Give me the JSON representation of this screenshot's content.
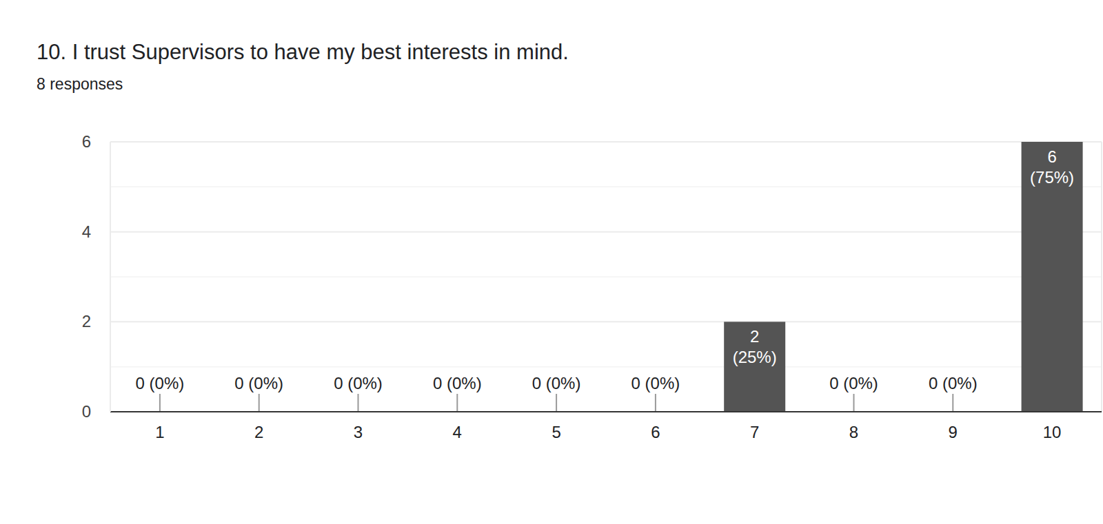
{
  "chart_data": {
    "type": "bar",
    "title": "10. I trust Supervisors to have my best interests in mind.",
    "subtitle": "8 responses",
    "categories": [
      "1",
      "2",
      "3",
      "4",
      "5",
      "6",
      "7",
      "8",
      "9",
      "10"
    ],
    "values": [
      0,
      0,
      0,
      0,
      0,
      0,
      2,
      0,
      0,
      6
    ],
    "value_labels": [
      "0 (0%)",
      "0 (0%)",
      "0 (0%)",
      "0 (0%)",
      "0 (0%)",
      "0 (0%)",
      "2 (25%)",
      "0 (0%)",
      "0 (0%)",
      "6 (75%)"
    ],
    "data_labels": true,
    "color": "#545454",
    "ylim": [
      0,
      6
    ],
    "yticks": [
      0,
      2,
      4,
      6
    ],
    "grid": true
  }
}
